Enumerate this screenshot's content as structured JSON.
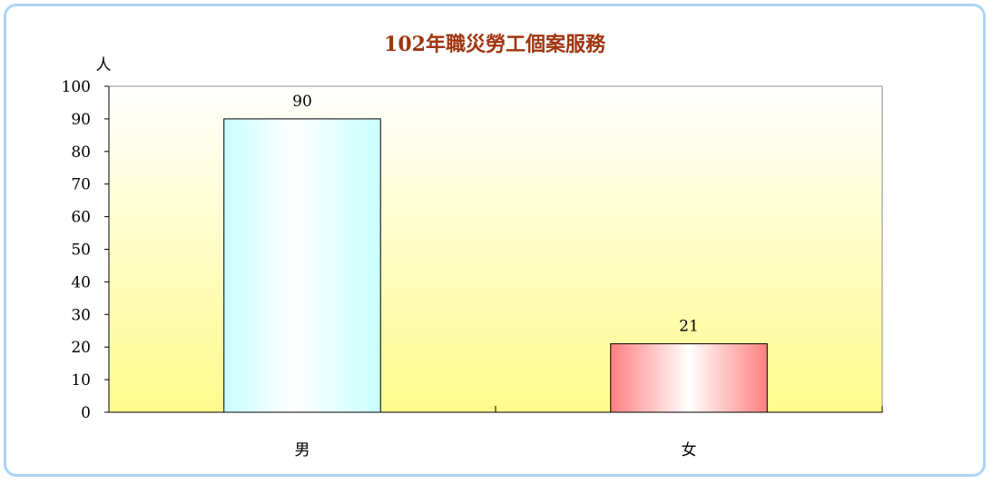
{
  "chart_data": {
    "type": "bar",
    "title": "102年職災勞工個案服務",
    "ylabel": "人",
    "xlabel": "",
    "categories": [
      "男",
      "女"
    ],
    "values": [
      90,
      21
    ],
    "ylim": [
      0,
      100
    ],
    "yticks": [
      0,
      10,
      20,
      30,
      40,
      50,
      60,
      70,
      80,
      90,
      100
    ],
    "data_labels": [
      "90",
      "21"
    ],
    "grid": false,
    "legend": "none",
    "bar_colors": [
      "#cfffff",
      "#ff8c8c"
    ]
  }
}
